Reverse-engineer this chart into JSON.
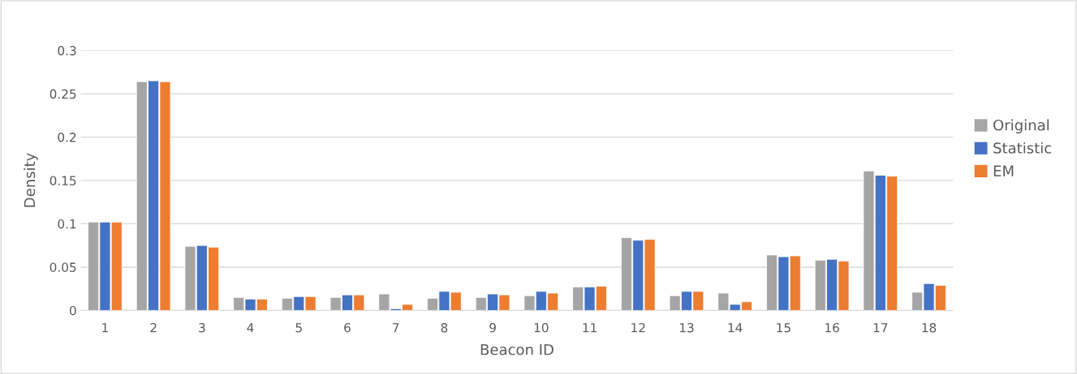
{
  "chart_data": {
    "type": "bar",
    "xlabel": "Beacon ID",
    "ylabel": "Density",
    "categories": [
      "1",
      "2",
      "3",
      "4",
      "5",
      "6",
      "7",
      "8",
      "9",
      "10",
      "11",
      "12",
      "13",
      "14",
      "15",
      "16",
      "17",
      "18"
    ],
    "series": [
      {
        "name": "Original",
        "color": "#a5a5a5",
        "values": [
          0.102,
          0.264,
          0.074,
          0.015,
          0.014,
          0.015,
          0.019,
          0.014,
          0.015,
          0.017,
          0.027,
          0.084,
          0.017,
          0.02,
          0.064,
          0.058,
          0.161,
          0.021
        ]
      },
      {
        "name": "Statistic",
        "color": "#4472c4",
        "values": [
          0.102,
          0.265,
          0.075,
          0.013,
          0.016,
          0.018,
          0.002,
          0.022,
          0.019,
          0.022,
          0.027,
          0.081,
          0.022,
          0.007,
          0.062,
          0.059,
          0.156,
          0.031
        ]
      },
      {
        "name": "EM",
        "color": "#ed7d31",
        "values": [
          0.102,
          0.264,
          0.073,
          0.013,
          0.016,
          0.018,
          0.007,
          0.021,
          0.018,
          0.02,
          0.028,
          0.082,
          0.022,
          0.01,
          0.063,
          0.057,
          0.155,
          0.029
        ]
      }
    ],
    "ylim": [
      0,
      0.3
    ],
    "yticks": [
      {
        "value": 0,
        "label": "0"
      },
      0.05,
      0.1,
      0.15,
      0.2,
      0.25,
      0.3
    ],
    "grid": "y",
    "legend": "right"
  }
}
